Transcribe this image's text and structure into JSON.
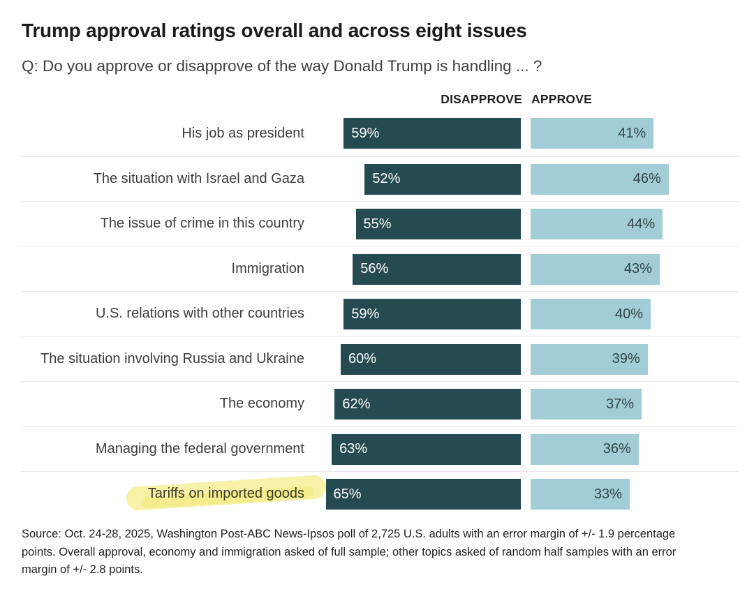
{
  "title": "Trump approval ratings overall and across eight issues",
  "subtitle": "Q: Do you approve or disapprove of the way Donald Trump is handling ... ?",
  "columns": {
    "disapprove_label": "DISAPPROVE",
    "approve_label": "APPROVE"
  },
  "colors": {
    "disapprove_bar": "#254a51",
    "approve_bar": "#a2cdd6",
    "highlight_marker": "#f2e55e",
    "row_divider": "#e9e9e9"
  },
  "chart_data": {
    "type": "bar",
    "orientation": "horizontal",
    "unit": "%",
    "title": "Trump approval ratings overall and across eight issues",
    "categories": [
      "His job as president",
      "The situation with Israel and Gaza",
      "The issue of crime in this country",
      "Immigration",
      "U.S. relations with other countries",
      "The situation involving Russia and Ukraine",
      "The economy",
      "Managing the federal government",
      "Tariffs on imported goods"
    ],
    "series": [
      {
        "name": "Disapprove",
        "values": [
          59,
          52,
          55,
          56,
          59,
          60,
          62,
          63,
          65
        ]
      },
      {
        "name": "Approve",
        "values": [
          41,
          46,
          44,
          43,
          40,
          39,
          37,
          36,
          33
        ]
      }
    ],
    "highlighted_category": "Tariffs on imported goods",
    "xlim": [
      0,
      100
    ],
    "grid": false,
    "legend_position": "top-as-column-headers"
  },
  "source": "Source: Oct. 24-28, 2025, Washington Post-ABC News-Ipsos poll of 2,725 U.S. adults with an error margin of +/- 1.9 percentage points. Overall approval, economy and immigration asked of full sample; other topics asked of random half samples with an error margin of +/- 2.8 points."
}
